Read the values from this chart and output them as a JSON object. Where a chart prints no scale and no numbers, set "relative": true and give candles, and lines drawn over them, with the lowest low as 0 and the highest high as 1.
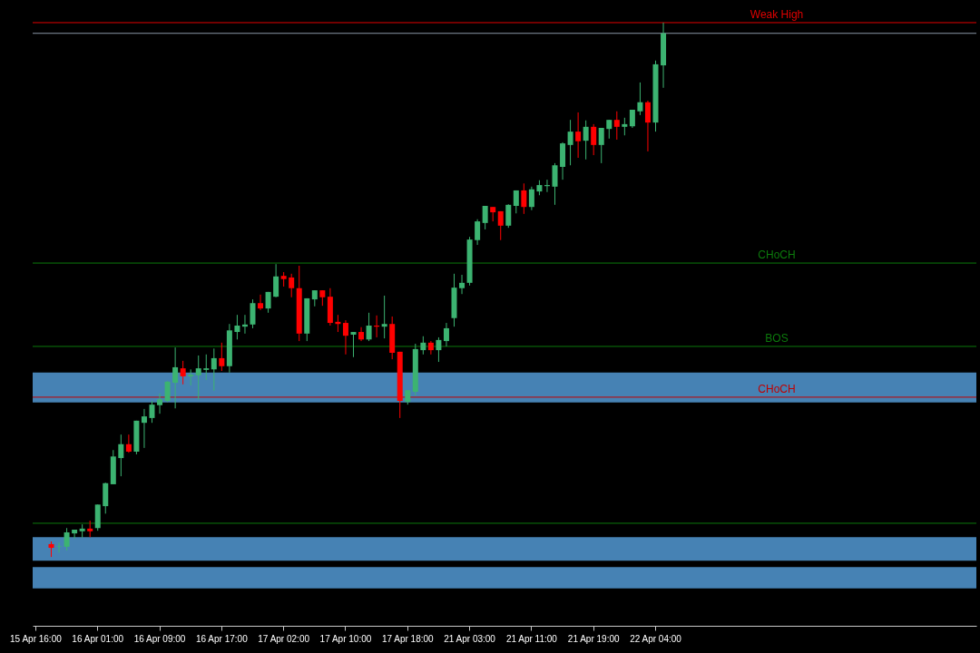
{
  "chart_data": {
    "type": "candlestick",
    "relative": true,
    "categories": [
      "15 Apr 16:00",
      null,
      null,
      null,
      null,
      null,
      null,
      null,
      "16 Apr 01:00",
      null,
      null,
      null,
      null,
      null,
      null,
      null,
      "16 Apr 09:00",
      null,
      null,
      null,
      null,
      null,
      null,
      null,
      "16 Apr 17:00",
      null,
      null,
      null,
      null,
      null,
      null,
      null,
      "17 Apr 02:00",
      null,
      null,
      null,
      null,
      null,
      null,
      null,
      "17 Apr 10:00",
      null,
      null,
      null,
      null,
      null,
      null,
      null,
      "17 Apr 18:00",
      null,
      null,
      null,
      null,
      null,
      null,
      null,
      "21 Apr 03:00",
      null,
      null,
      null,
      null,
      null,
      null,
      null,
      "21 Apr 11:00",
      null,
      null,
      null,
      null,
      null,
      null,
      null,
      "21 Apr 19:00",
      null,
      null,
      null,
      null,
      null,
      null,
      null,
      "22 Apr 04:00",
      null,
      null,
      null,
      null,
      null,
      null,
      null,
      null,
      null,
      null,
      null,
      null,
      null,
      null,
      null,
      null,
      null,
      null,
      null,
      null,
      null,
      null,
      null,
      null,
      null,
      null,
      null,
      null,
      null,
      null,
      null,
      null,
      null,
      null,
      null,
      null,
      null,
      null,
      null,
      null,
      null
    ],
    "ohlc": [
      null,
      null,
      [
        0.024,
        0.029,
        0,
        0.017
      ],
      [
        0.019,
        0.027,
        0.008,
        0.02
      ],
      [
        0.019,
        0.054,
        0.012,
        0.046
      ],
      [
        0.044,
        0.051,
        0.034,
        0.051
      ],
      [
        0.048,
        0.061,
        0.036,
        0.053
      ],
      [
        0.053,
        0.068,
        0.037,
        0.048
      ],
      [
        0.054,
        0.098,
        0.049,
        0.098
      ],
      [
        0.095,
        0.139,
        0.081,
        0.138
      ],
      [
        0.136,
        0.2,
        0.136,
        0.188
      ],
      [
        0.185,
        0.229,
        0.151,
        0.211
      ],
      [
        0.211,
        0.229,
        0.195,
        0.197
      ],
      [
        0.197,
        0.255,
        0.192,
        0.255
      ],
      [
        0.251,
        0.277,
        0.204,
        0.263
      ],
      [
        0.26,
        0.292,
        0.251,
        0.285
      ],
      [
        0.284,
        0.306,
        0.268,
        0.295
      ],
      [
        0.292,
        0.329,
        0.29,
        0.328
      ],
      [
        0.326,
        0.392,
        0.278,
        0.355
      ],
      [
        0.353,
        0.367,
        0.323,
        0.338
      ],
      [
        0.338,
        0.351,
        0.321,
        0.341
      ],
      [
        0.34,
        0.377,
        0.295,
        0.353
      ],
      [
        0.35,
        0.379,
        0.331,
        0.353
      ],
      [
        0.351,
        0.39,
        0.311,
        0.372
      ],
      [
        0.372,
        0.401,
        0.348,
        0.357
      ],
      [
        0.357,
        0.436,
        0.345,
        0.424
      ],
      [
        0.421,
        0.453,
        0.407,
        0.433
      ],
      [
        0.431,
        0.453,
        0.418,
        0.435
      ],
      [
        0.435,
        0.482,
        0.428,
        0.475
      ],
      [
        0.475,
        0.491,
        0.462,
        0.465
      ],
      [
        0.465,
        0.496,
        0.457,
        0.496
      ],
      [
        0.487,
        0.548,
        0.486,
        0.525
      ],
      [
        0.526,
        0.533,
        0.506,
        0.52
      ],
      [
        0.523,
        0.53,
        0.486,
        0.503
      ],
      [
        0.503,
        0.545,
        0.404,
        0.418
      ],
      [
        0.418,
        0.484,
        0.404,
        0.484
      ],
      [
        0.482,
        0.499,
        0.469,
        0.499
      ],
      [
        0.499,
        0.499,
        0.47,
        0.486
      ],
      [
        0.487,
        0.503,
        0.433,
        0.438
      ],
      [
        0.44,
        0.453,
        0.421,
        0.436
      ],
      [
        0.438,
        0.443,
        0.379,
        0.414
      ],
      [
        0.416,
        0.421,
        0.374,
        0.421
      ],
      [
        0.421,
        0.43,
        0.404,
        0.407
      ],
      [
        0.407,
        0.457,
        0.404,
        0.433
      ],
      [
        0.433,
        0.452,
        0.411,
        0.431
      ],
      [
        0.431,
        0.489,
        0.409,
        0.436
      ],
      [
        0.436,
        0.45,
        0.37,
        0.382
      ],
      [
        0.384,
        0.384,
        0.26,
        0.292
      ],
      [
        0.29,
        0.312,
        0.285,
        0.312
      ],
      [
        0.309,
        0.399,
        0.302,
        0.389
      ],
      [
        0.387,
        0.413,
        0.379,
        0.401
      ],
      [
        0.401,
        0.404,
        0.379,
        0.387
      ],
      [
        0.387,
        0.411,
        0.365,
        0.406
      ],
      [
        0.404,
        0.438,
        0.394,
        0.428
      ],
      [
        0.447,
        0.53,
        0.431,
        0.504
      ],
      [
        0.503,
        0.528,
        0.492,
        0.513
      ],
      [
        0.513,
        0.599,
        0.508,
        0.594
      ],
      [
        0.593,
        0.632,
        0.584,
        0.628
      ],
      [
        0.625,
        0.657,
        0.613,
        0.657
      ],
      [
        0.655,
        0.655,
        0.628,
        0.645
      ],
      [
        0.647,
        0.647,
        0.593,
        0.62
      ],
      [
        0.62,
        0.66,
        0.616,
        0.659
      ],
      [
        0.657,
        0.686,
        0.643,
        0.686
      ],
      [
        0.686,
        0.699,
        0.642,
        0.655
      ],
      [
        0.655,
        0.693,
        0.649,
        0.688
      ],
      [
        0.684,
        0.705,
        0.677,
        0.696
      ],
      [
        0.694,
        0.706,
        0.683,
        0.696
      ],
      [
        0.693,
        0.737,
        0.659,
        0.733
      ],
      [
        0.73,
        0.776,
        0.706,
        0.774
      ],
      [
        0.771,
        0.818,
        0.733,
        0.796
      ],
      [
        0.796,
        0.832,
        0.747,
        0.778
      ],
      [
        0.779,
        0.817,
        0.744,
        0.805
      ],
      [
        0.805,
        0.81,
        0.752,
        0.771
      ],
      [
        0.771,
        0.803,
        0.737,
        0.803
      ],
      [
        0.801,
        0.818,
        0.783,
        0.818
      ],
      [
        0.818,
        0.834,
        0.781,
        0.805
      ],
      [
        0.805,
        0.822,
        0.789,
        0.81
      ],
      [
        0.806,
        0.837,
        0.803,
        0.837
      ],
      [
        0.834,
        0.888,
        0.827,
        0.851
      ],
      [
        0.851,
        0.854,
        0.759,
        0.813
      ],
      [
        0.813,
        0.929,
        0.796,
        0.922
      ],
      [
        0.92,
        1,
        0.878,
        0.98
      ],
      null,
      null,
      null,
      null,
      null,
      null,
      null,
      null,
      null,
      null,
      null,
      null,
      null,
      null,
      null,
      null,
      null,
      null,
      null,
      null,
      null,
      null,
      null,
      null,
      null,
      null,
      null,
      null,
      null,
      null,
      null,
      null,
      null,
      null,
      null,
      null,
      null,
      null,
      null,
      null
    ],
    "colors": [
      null,
      null,
      "#ff0000",
      "#3cb371",
      "#3cb371",
      "#3cb371",
      "#3cb371",
      "#ff0000",
      "#3cb371",
      "#3cb371",
      "#3cb371",
      "#3cb371",
      "#ff0000",
      "#3cb371",
      "#3cb371",
      "#3cb371",
      "#3cb371",
      "#3cb371",
      "#3cb371",
      "#ff0000",
      "#3cb371",
      "#3cb371",
      "#3cb371",
      "#3cb371",
      "#ff0000",
      "#3cb371",
      "#3cb371",
      "#3cb371",
      "#3cb371",
      "#ff0000",
      "#3cb371",
      "#3cb371",
      "#ff0000",
      "#ff0000",
      "#ff0000",
      "#3cb371",
      "#3cb371",
      "#ff0000",
      "#ff0000",
      "#ff0000",
      "#ff0000",
      "#3cb371",
      "#ff0000",
      "#3cb371",
      "#ff0000",
      "#3cb371",
      "#ff0000",
      "#ff0000",
      "#3cb371",
      "#3cb371",
      "#3cb371",
      "#ff0000",
      "#3cb371",
      "#3cb371",
      "#3cb371",
      "#3cb371",
      "#3cb371",
      "#3cb371",
      "#3cb371",
      "#ff0000",
      "#ff0000",
      "#3cb371",
      "#3cb371",
      "#ff0000",
      "#3cb371",
      "#3cb371",
      "#3cb371",
      "#3cb371",
      "#3cb371",
      "#3cb371",
      "#ff0000",
      "#3cb371",
      "#ff0000",
      "#3cb371",
      "#3cb371",
      "#ff0000",
      "#3cb371",
      "#3cb371",
      "#3cb371",
      "#ff0000",
      "#3cb371",
      "#3cb371",
      null,
      null,
      null,
      null,
      null,
      null,
      null,
      null,
      null,
      null,
      null,
      null,
      null,
      null,
      null,
      null,
      null,
      null,
      null,
      null,
      null,
      null,
      null,
      null,
      null,
      null,
      null,
      null,
      null,
      null,
      null,
      null,
      null,
      null,
      null,
      null,
      null,
      null,
      null,
      null
    ],
    "ref_lines": [
      {
        "axis": "y",
        "value": 1,
        "label": "Weak High",
        "color": "#e00000"
      },
      {
        "axis": "y",
        "value": 0.98,
        "color": "#8a95a5"
      },
      {
        "axis": "y",
        "value": 0.55,
        "label": "CHoCH",
        "color": "#0c7a0c"
      },
      {
        "axis": "y",
        "value": 0.394,
        "label": "BOS",
        "color": "#0c7a0c"
      },
      {
        "axis": "y",
        "value": 0.299,
        "label": "CHoCH",
        "color": "#c00000"
      },
      {
        "axis": "y",
        "value": 0.063,
        "color": "#0c7a0c"
      }
    ],
    "bands": [
      {
        "axis": "y",
        "from": 0.289,
        "to": 0.345,
        "color": "#4682b4"
      },
      {
        "axis": "y",
        "from": -0.007,
        "to": 0.037,
        "color": "#4682b4"
      },
      {
        "axis": "y",
        "from": -0.059,
        "to": -0.019,
        "color": "#4682b4"
      }
    ]
  }
}
